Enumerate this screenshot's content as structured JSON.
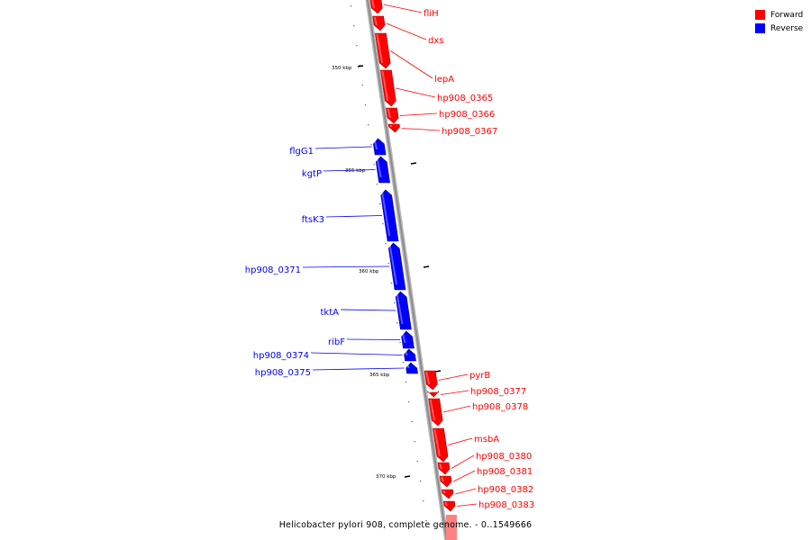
{
  "legend": [
    {
      "label": "Forward",
      "color": "#ff0000"
    },
    {
      "label": "Reverse",
      "color": "#0000ff"
    }
  ],
  "caption": "Helicobacter pylori 908, complete genome. - 0..1549666",
  "colors": {
    "forward": "#ff0000",
    "reverse": "#0000ff",
    "backbone": "#8c8c8c"
  },
  "ticks": [
    "350 kbp",
    "355 kbp",
    "360 kbp",
    "365 kbp",
    "370 kbp"
  ],
  "genes": [
    {
      "name": "fliH",
      "strand": "forward"
    },
    {
      "name": "dxs",
      "strand": "forward"
    },
    {
      "name": "lepA",
      "strand": "forward"
    },
    {
      "name": "hp908_0365",
      "strand": "forward"
    },
    {
      "name": "hp908_0366",
      "strand": "forward"
    },
    {
      "name": "hp908_0367",
      "strand": "forward"
    },
    {
      "name": "flgG1",
      "strand": "reverse"
    },
    {
      "name": "kgtP",
      "strand": "reverse"
    },
    {
      "name": "ftsK3",
      "strand": "reverse"
    },
    {
      "name": "hp908_0371",
      "strand": "reverse"
    },
    {
      "name": "tktA",
      "strand": "reverse"
    },
    {
      "name": "ribF",
      "strand": "reverse"
    },
    {
      "name": "hp908_0374",
      "strand": "reverse"
    },
    {
      "name": "hp908_0375",
      "strand": "reverse"
    },
    {
      "name": "pyrB",
      "strand": "forward"
    },
    {
      "name": "hp908_0377",
      "strand": "forward"
    },
    {
      "name": "hp908_0378",
      "strand": "forward"
    },
    {
      "name": "msbA",
      "strand": "forward"
    },
    {
      "name": "hp908_0380",
      "strand": "forward"
    },
    {
      "name": "hp908_0381",
      "strand": "forward"
    },
    {
      "name": "hp908_0382",
      "strand": "forward"
    },
    {
      "name": "hp908_0383",
      "strand": "forward"
    }
  ]
}
